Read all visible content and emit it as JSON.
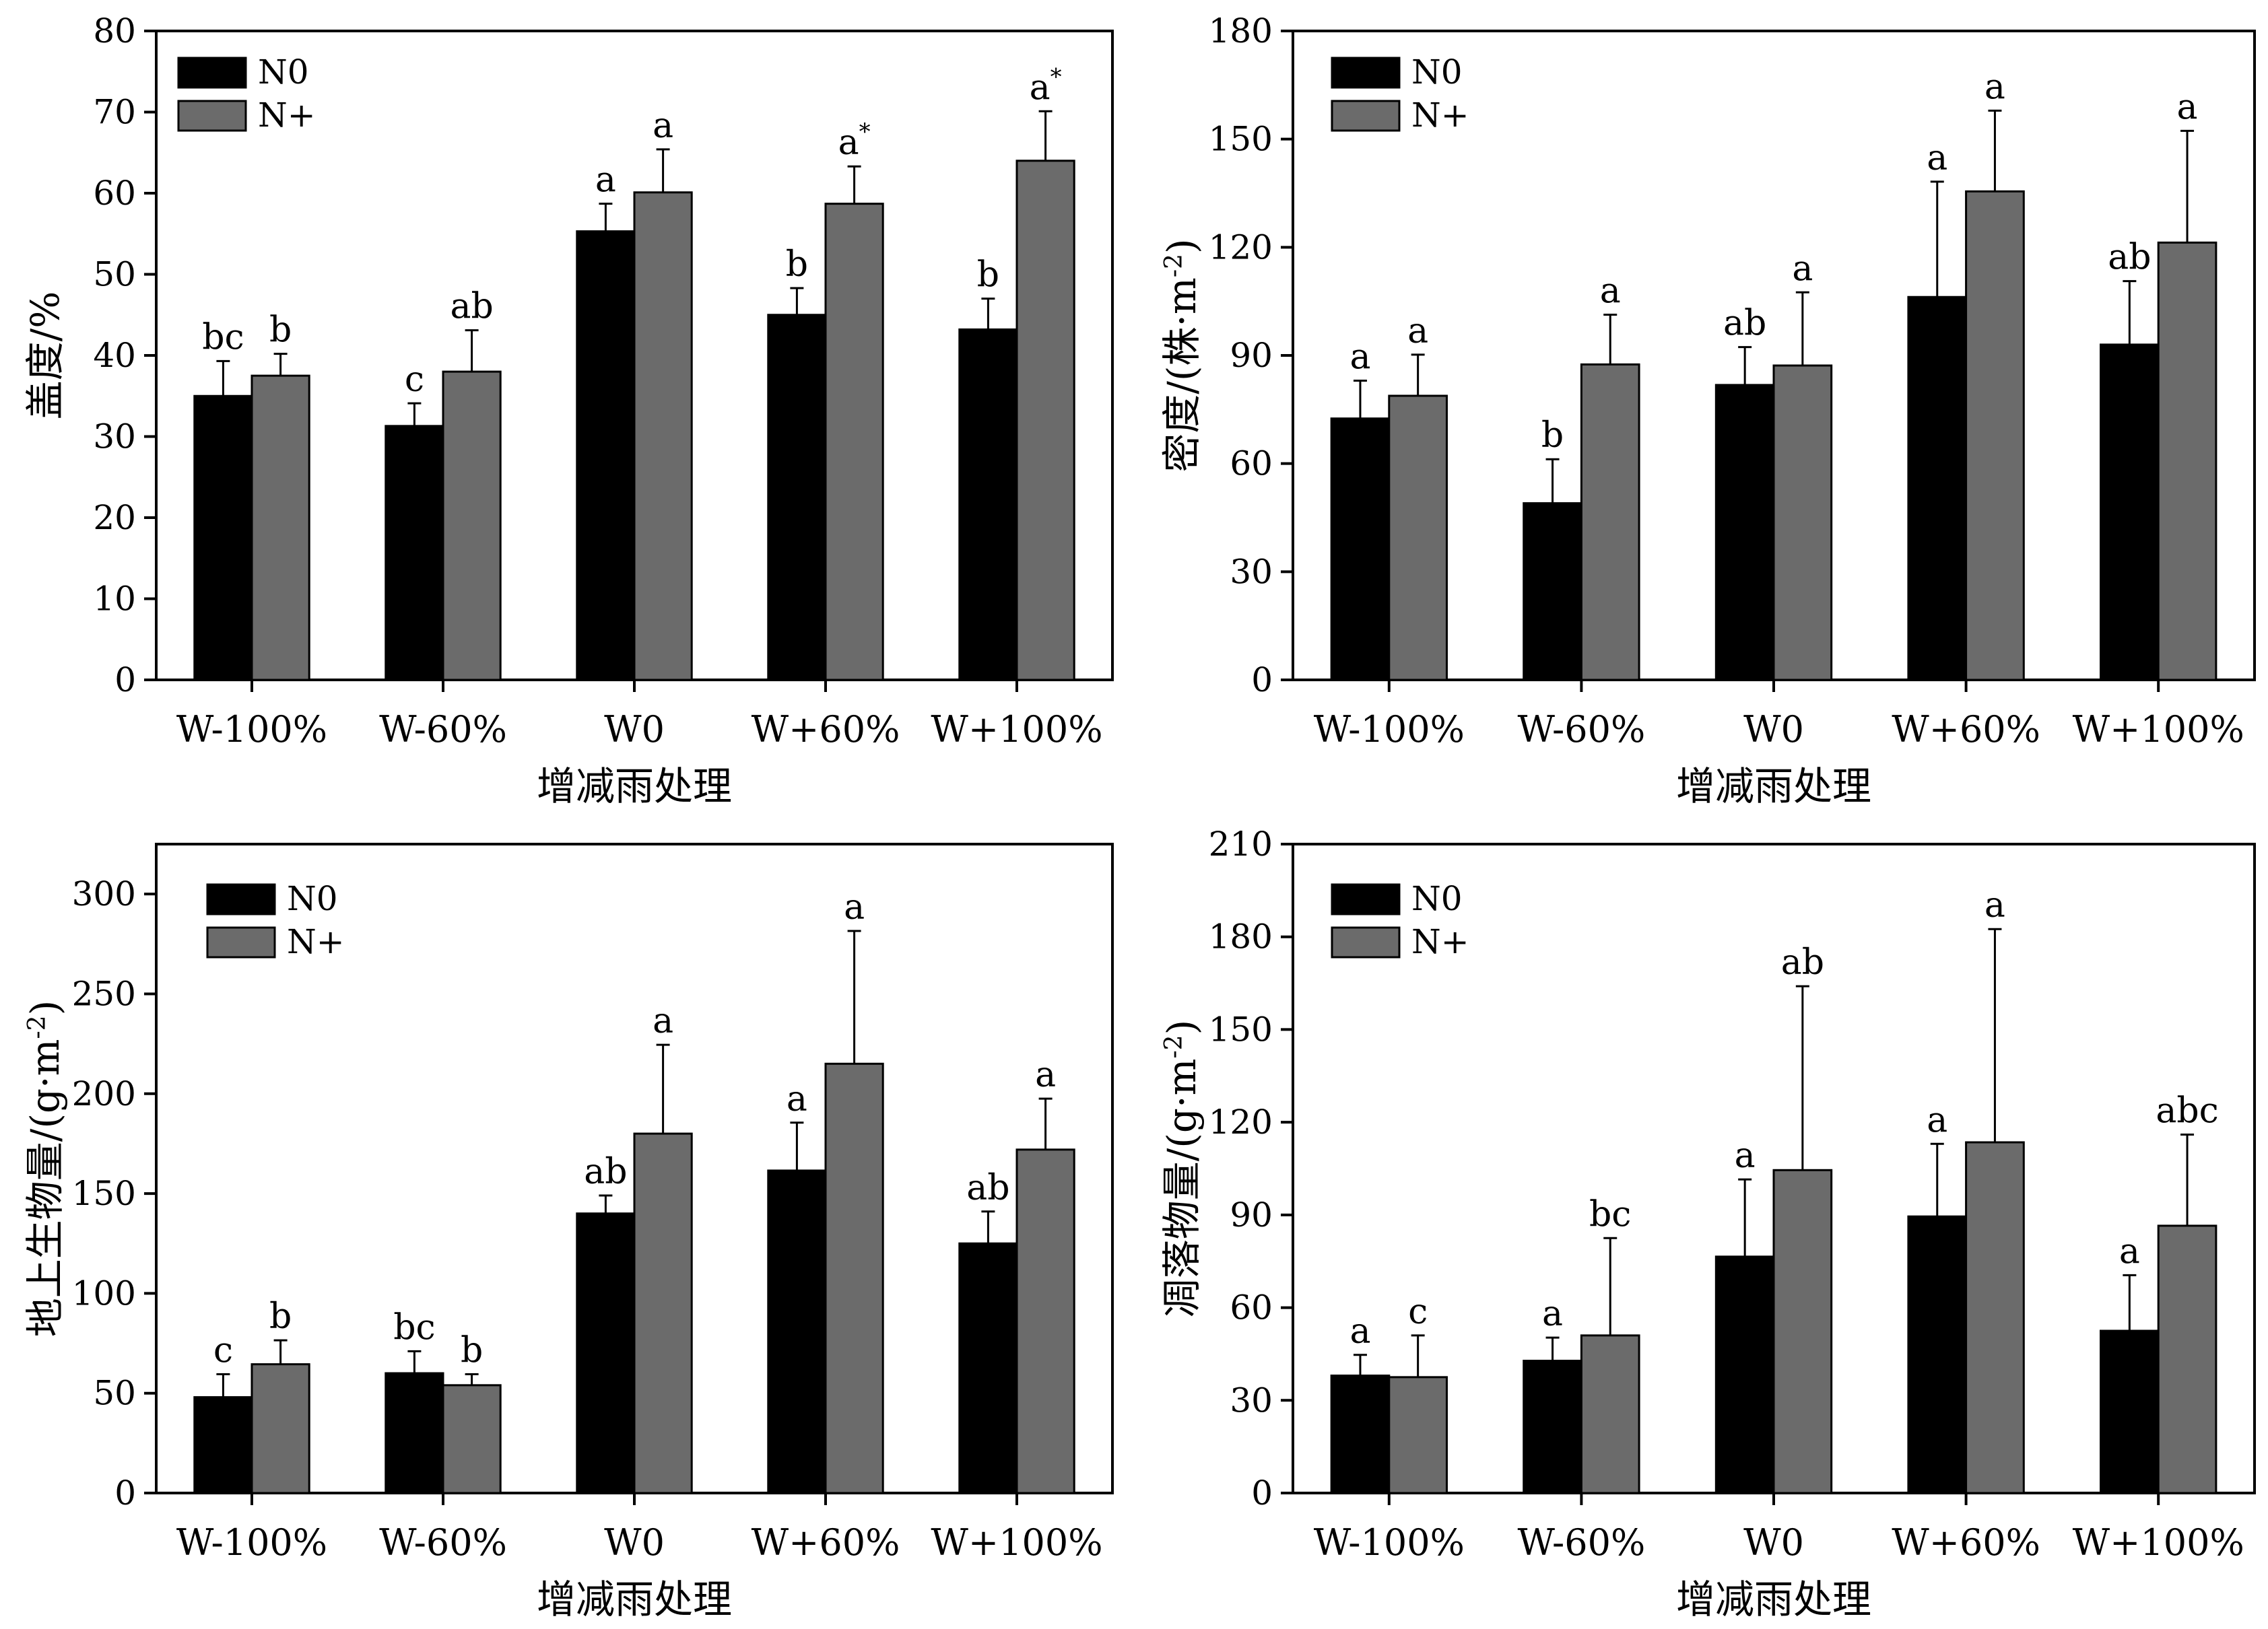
{
  "chart_data": [
    {
      "type": "bar",
      "panel": "cover",
      "categories": [
        "W-100%",
        "W-60%",
        "W0",
        "W+60%",
        "W+100%"
      ],
      "xlabel": "增减雨处理",
      "ylabel": "盖度/%",
      "ylim": [
        0,
        80
      ],
      "yticks": [
        0,
        10,
        20,
        30,
        40,
        50,
        60,
        70,
        80
      ],
      "grid": false,
      "legend_position": "top-left",
      "series": [
        {
          "name": "N0",
          "color": "#000000",
          "values": [
            35.0,
            31.3,
            55.3,
            45.0,
            43.2
          ],
          "errors": [
            4.3,
            2.8,
            3.4,
            3.3,
            3.8
          ],
          "labels": [
            "bc",
            "c",
            "a",
            "b",
            "b"
          ],
          "label_marks": [
            "",
            "",
            "",
            "",
            ""
          ]
        },
        {
          "name": "N+",
          "color": "#6b6b6b",
          "values": [
            37.5,
            38.0,
            60.1,
            58.7,
            64.0
          ],
          "errors": [
            2.7,
            5.1,
            5.3,
            4.6,
            6.1
          ],
          "labels": [
            "b",
            "ab",
            "a",
            "a",
            "a"
          ],
          "label_marks": [
            "",
            "",
            "",
            "*",
            "*"
          ]
        }
      ]
    },
    {
      "type": "bar",
      "panel": "density",
      "categories": [
        "W-100%",
        "W-60%",
        "W0",
        "W+60%",
        "W+100%"
      ],
      "xlabel": "增减雨处理",
      "ylabel": "密度/(株·m",
      "ylabel_sup": "-2",
      "ylabel_tail": ")",
      "ylim": [
        0,
        180
      ],
      "yticks": [
        0,
        30,
        60,
        90,
        120,
        150,
        180
      ],
      "grid": false,
      "legend_position": "top-left",
      "series": [
        {
          "name": "N0",
          "color": "#000000",
          "values": [
            72.5,
            49.0,
            81.8,
            106.2,
            93.0
          ],
          "errors": [
            10.5,
            12.2,
            10.5,
            32.0,
            17.6
          ],
          "labels": [
            "a",
            "b",
            "ab",
            "a",
            "ab"
          ],
          "label_marks": [
            "",
            "",
            "",
            "",
            ""
          ]
        },
        {
          "name": "N+",
          "color": "#6b6b6b",
          "values": [
            78.8,
            87.5,
            87.2,
            135.5,
            121.3
          ],
          "errors": [
            11.4,
            13.8,
            20.3,
            22.4,
            31.0
          ],
          "labels": [
            "a",
            "a",
            "a",
            "a",
            "a"
          ],
          "label_marks": [
            "",
            "",
            "",
            "",
            ""
          ]
        }
      ]
    },
    {
      "type": "bar",
      "panel": "aboveground-biomass",
      "categories": [
        "W-100%",
        "W-60%",
        "W0",
        "W+60%",
        "W+100%"
      ],
      "xlabel": "增减雨处理",
      "ylabel": "地上生物量/(g·m",
      "ylabel_sup": "-2",
      "ylabel_tail": ")",
      "ylim": [
        0,
        325
      ],
      "yticks": [
        0,
        50,
        100,
        150,
        200,
        250,
        300
      ],
      "grid": false,
      "legend_position": "top-left",
      "series": [
        {
          "name": "N0",
          "color": "#000000",
          "values": [
            48.0,
            60.0,
            140.0,
            161.5,
            125.0
          ],
          "errors": [
            11.5,
            11.0,
            9.0,
            24.0,
            16.0
          ],
          "labels": [
            "c",
            "bc",
            "ab",
            "a",
            "ab"
          ],
          "label_marks": [
            "",
            "",
            "",
            "",
            ""
          ]
        },
        {
          "name": "N+",
          "color": "#6b6b6b",
          "values": [
            64.5,
            54.0,
            180.0,
            215.0,
            172.0
          ],
          "errors": [
            12.0,
            5.5,
            44.5,
            66.5,
            25.5
          ],
          "labels": [
            "b",
            "b",
            "a",
            "a",
            "a"
          ],
          "label_marks": [
            "",
            "",
            "",
            "",
            ""
          ]
        }
      ]
    },
    {
      "type": "bar",
      "panel": "litter-biomass",
      "categories": [
        "W-100%",
        "W-60%",
        "W0",
        "W+60%",
        "W+100%"
      ],
      "xlabel": "增减雨处理",
      "ylabel": "凋落物量/(g·m",
      "ylabel_sup": "-2",
      "ylabel_tail": ")",
      "ylim": [
        0,
        210
      ],
      "yticks": [
        0,
        30,
        60,
        90,
        120,
        150,
        180,
        210
      ],
      "grid": false,
      "legend_position": "top-left",
      "series": [
        {
          "name": "N0",
          "color": "#000000",
          "values": [
            38.0,
            42.8,
            76.5,
            89.5,
            52.5
          ],
          "errors": [
            6.7,
            7.5,
            25.0,
            23.5,
            18.0
          ],
          "labels": [
            "a",
            "a",
            "a",
            "a",
            "a"
          ],
          "label_marks": [
            "",
            "",
            "",
            "",
            ""
          ]
        },
        {
          "name": "N+",
          "color": "#6b6b6b",
          "values": [
            37.5,
            51.0,
            104.5,
            113.5,
            86.5
          ],
          "errors": [
            13.5,
            31.5,
            59.5,
            69.0,
            29.5
          ],
          "labels": [
            "c",
            "bc",
            "ab",
            "a",
            "abc"
          ],
          "label_marks": [
            "",
            "",
            "",
            "",
            ""
          ]
        }
      ]
    }
  ]
}
